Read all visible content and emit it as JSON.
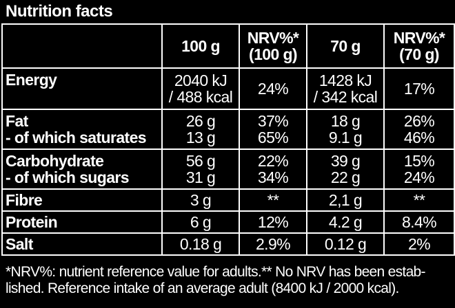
{
  "title": "Nutrition facts",
  "columns": [
    "100 g",
    "NRV%*",
    "(100 g)",
    "70 g",
    "NRV%*",
    "(70 g)"
  ],
  "rows": {
    "energy": {
      "label": "Energy",
      "c100": [
        "2040 kJ",
        "/ 488 kcal"
      ],
      "nrv100": "24%",
      "c70": [
        "1428 kJ",
        "/ 342 kcal"
      ],
      "nrv70": "17%"
    },
    "fat": {
      "label": [
        "Fat",
        "- of which saturates"
      ],
      "c100": [
        "26 g",
        "13 g"
      ],
      "nrv100": [
        "37%",
        "65%"
      ],
      "c70": [
        "18 g",
        "9.1 g"
      ],
      "nrv70": [
        "26%",
        "46%"
      ]
    },
    "carb": {
      "label": [
        "Carbohydrate",
        "- of which sugars"
      ],
      "c100": [
        "56 g",
        "31 g"
      ],
      "nrv100": [
        "22%",
        "34%"
      ],
      "c70": [
        "39 g",
        "22 g"
      ],
      "nrv70": [
        "15%",
        "24%"
      ]
    },
    "fibre": {
      "label": "Fibre",
      "c100": "3 g",
      "nrv100": "**",
      "c70": "2,1 g",
      "nrv70": "**"
    },
    "protein": {
      "label": "Protein",
      "c100": "6 g",
      "nrv100": "12%",
      "c70": "4.2 g",
      "nrv70": "8.4%"
    },
    "salt": {
      "label": "Salt",
      "c100": "0.18 g",
      "nrv100": "2.9%",
      "c70": "0.12 g",
      "nrv70": "2%"
    }
  },
  "footnote": [
    "*NRV%: nutrient reference value for adults.** No NRV has been estab-",
    "lished. Reference intake of an average adult (8400 kJ / 2000 kcal)."
  ]
}
